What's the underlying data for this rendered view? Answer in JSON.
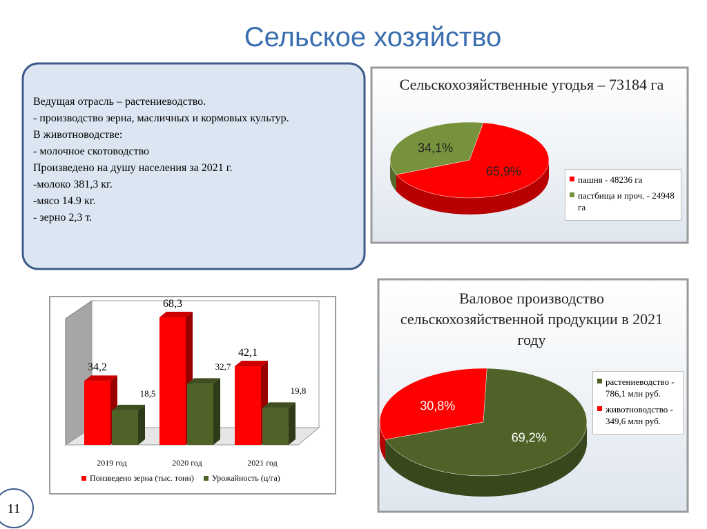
{
  "title": "Сельское хозяйство",
  "text_box": [
    "Ведущая отрасль – растениеводство.",
    "- производство зерна, масличных и кормовых культур.",
    "В животноводстве:",
    "-  молочное скотоводство",
    "Произведено на душу населения за  2021 г.",
    "-молоко 381,3 кг.",
    "-мясо 14.9 кг.",
    "- зерно 2,3 т."
  ],
  "page_number": "11",
  "chart_data": [
    {
      "type": "pie",
      "title": "Сельскохозяйственные угодья – 73184 га",
      "categories": [
        "пашня - 48236 га",
        "пастбища и проч. - 24948 га"
      ],
      "values": [
        65.9,
        34.1
      ],
      "value_labels": [
        "65,9%",
        "34,1%"
      ],
      "colors": [
        "#ff0000",
        "#76923c"
      ]
    },
    {
      "type": "bar",
      "categories": [
        "2019 год",
        "2020 год",
        "2021 год"
      ],
      "series": [
        {
          "name": "Понзведено зерна (тыс. тонн)",
          "color": "#ff0000",
          "values": [
            34.2,
            68.3,
            42.1
          ],
          "value_labels": [
            "34,2",
            "68,3",
            "42,1"
          ]
        },
        {
          "name": "Урожайность (ц/га)",
          "color": "#4f6228",
          "values": [
            18.5,
            32.7,
            19.8
          ],
          "value_labels": [
            "18,5",
            "32,7",
            "19,8"
          ]
        }
      ]
    },
    {
      "type": "pie",
      "title": "Валовое производство сельскохозяйственной продукции в 2021 году",
      "categories": [
        "растениеводство - 786,1 млн руб.",
        "животноводство - 349,6 млн руб."
      ],
      "values": [
        69.2,
        30.8
      ],
      "value_labels": [
        "69,2%",
        "30,8%"
      ],
      "colors": [
        "#4f6228",
        "#ff0000"
      ]
    }
  ]
}
